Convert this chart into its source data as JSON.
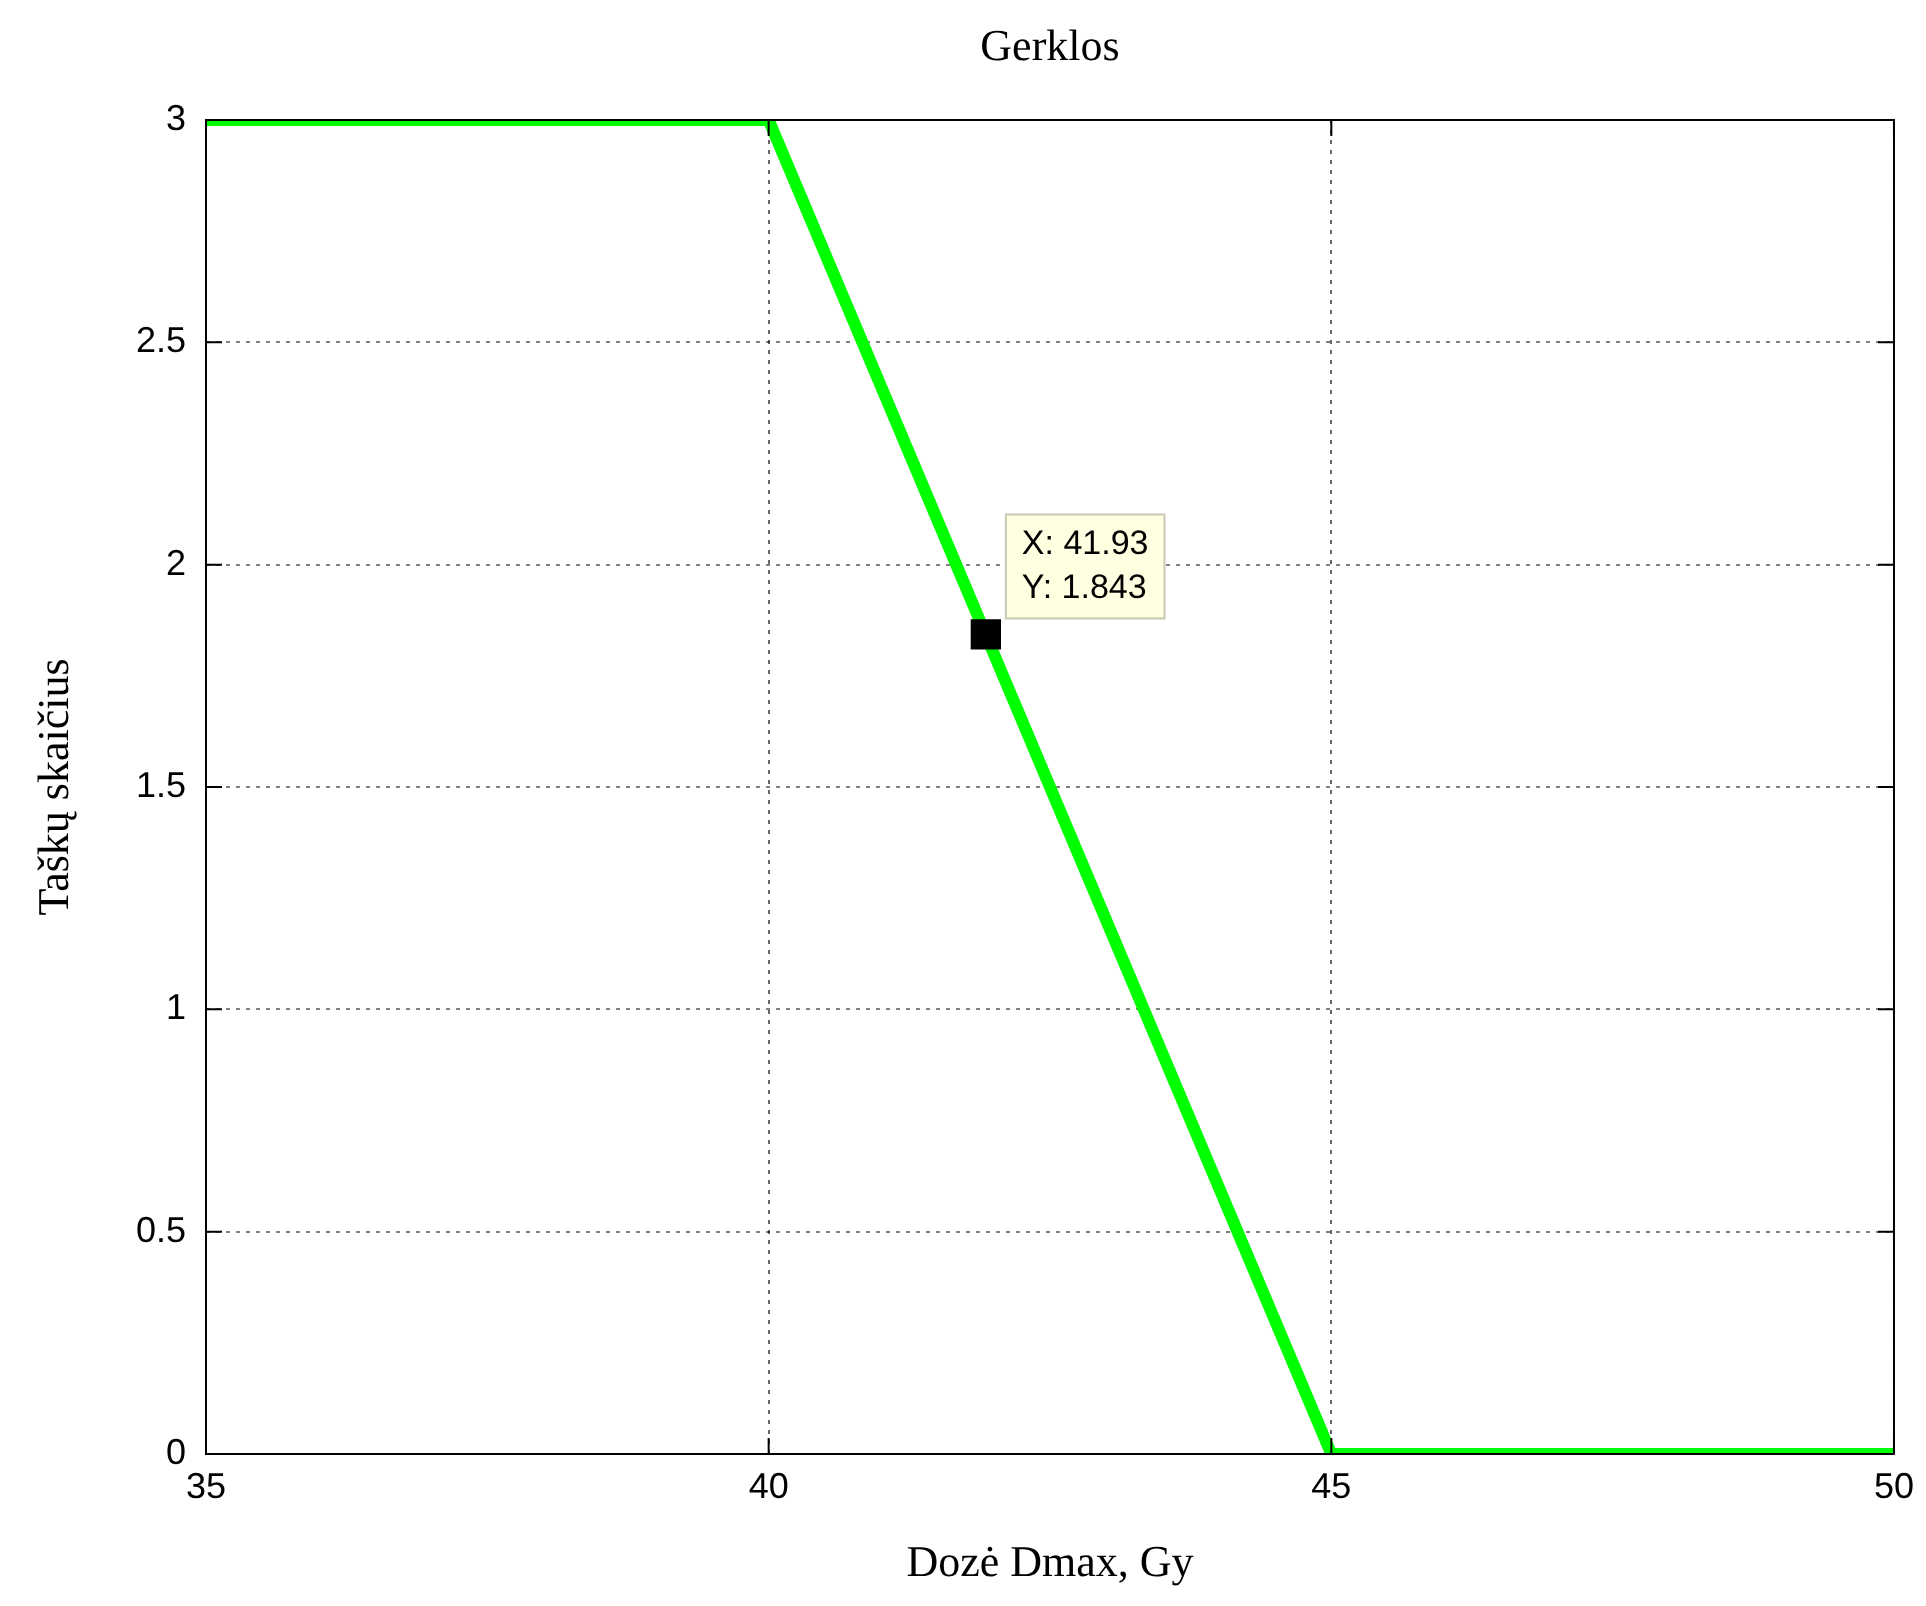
{
  "chart_data": {
    "type": "line",
    "title": "Gerklos",
    "xlabel": "Dozė Dmax, Gy",
    "ylabel": "Taškų skaičius",
    "x": [
      35,
      40,
      45,
      50
    ],
    "series": [
      {
        "color": "#00ff00",
        "values": [
          3,
          3,
          0,
          0
        ]
      },
      {
        "type": "scatter",
        "color": "#000000",
        "x": [
          41.93
        ],
        "values": [
          1.843
        ],
        "marker": "square"
      }
    ],
    "annotations": [
      {
        "text": "X: 41.93\nY: 1.843",
        "x": 41.93,
        "y": 1.843
      }
    ],
    "xlim": [
      35,
      50
    ],
    "xticks": [
      35,
      40,
      45,
      50
    ],
    "ylim": [
      0,
      3
    ],
    "yticks": [
      0,
      0.5,
      1,
      1.5,
      2,
      2.5,
      3
    ],
    "grid": true,
    "legend": false,
    "line_style": "solid"
  }
}
